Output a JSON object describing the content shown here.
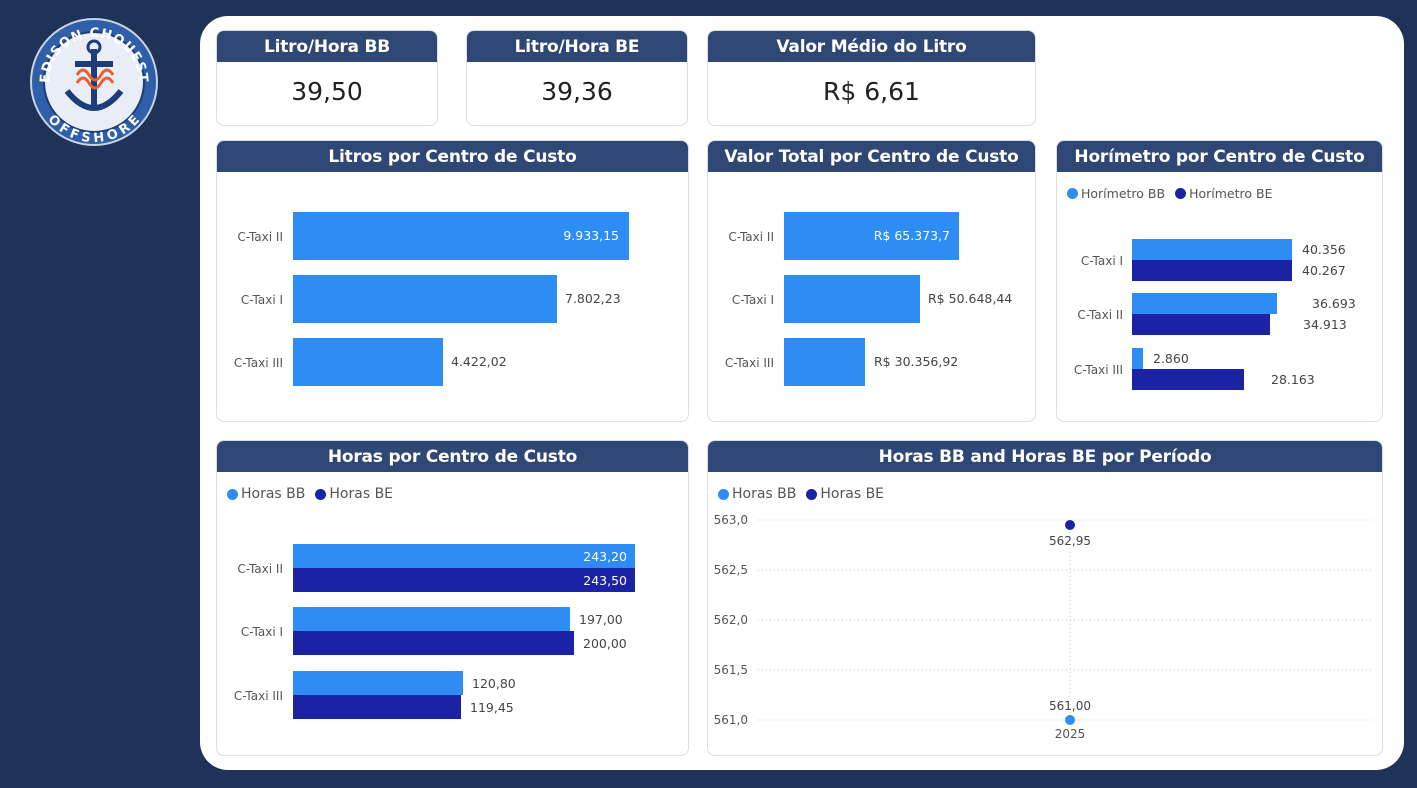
{
  "logo": {
    "top_text": "EDISON CHOUEST",
    "bottom_text": "OFFSHORE",
    "icon": "anchor-icon"
  },
  "kpis": [
    {
      "title": "Litro/Hora BB",
      "value": "39,50"
    },
    {
      "title": "Litro/Hora BE",
      "value": "39,36"
    },
    {
      "title": "Valor Médio do Litro",
      "value": "R$ 6,61"
    }
  ],
  "colors": {
    "series_bb": "#2e8df5",
    "series_be": "#1b22a3",
    "header": "#2f4775",
    "background": "#1f3358"
  },
  "chart_data": [
    {
      "type": "bar",
      "orientation": "horizontal",
      "title": "Litros por Centro de Custo",
      "categories": [
        "C-Taxi II",
        "C-Taxi I",
        "C-Taxi III"
      ],
      "values": [
        9933.15,
        7802.23,
        4422.02
      ],
      "labels": [
        "9.933,15",
        "7.802,23",
        "4.422,02"
      ]
    },
    {
      "type": "bar",
      "orientation": "horizontal",
      "title": "Valor Total por Centro de Custo",
      "categories": [
        "C-Taxi II",
        "C-Taxi I",
        "C-Taxi III"
      ],
      "values": [
        65373.7,
        50648.44,
        30356.92
      ],
      "labels": [
        "R$ 65.373,7",
        "R$ 50.648,44",
        "R$ 30.356,92"
      ]
    },
    {
      "type": "bar",
      "orientation": "horizontal",
      "title": "Horímetro por Centro de Custo",
      "categories": [
        "C-Taxi I",
        "C-Taxi II",
        "C-Taxi III"
      ],
      "legend": [
        "Horímetro BB",
        "Horímetro BE"
      ],
      "series": [
        {
          "name": "Horímetro BB",
          "values": [
            40356,
            36693,
            2860
          ],
          "labels": [
            "40.356",
            "36.693",
            "2.860"
          ]
        },
        {
          "name": "Horímetro BE",
          "values": [
            40267,
            34913,
            28163
          ],
          "labels": [
            "40.267",
            "34.913",
            "28.163"
          ]
        }
      ]
    },
    {
      "type": "bar",
      "orientation": "horizontal",
      "title": "Horas por Centro de Custo",
      "categories": [
        "C-Taxi II",
        "C-Taxi I",
        "C-Taxi III"
      ],
      "legend": [
        "Horas BB",
        "Horas BE"
      ],
      "series": [
        {
          "name": "Horas BB",
          "values": [
            243.2,
            197.0,
            120.8
          ],
          "labels": [
            "243,20",
            "197,00",
            "120,80"
          ]
        },
        {
          "name": "Horas BE",
          "values": [
            243.5,
            200.0,
            119.45
          ],
          "labels": [
            "243,50",
            "200,00",
            "119,45"
          ]
        }
      ]
    },
    {
      "type": "scatter",
      "title": "Horas BB and Horas BE por Período",
      "legend": [
        "Horas BB",
        "Horas BE"
      ],
      "x": [
        "2025"
      ],
      "ylim": [
        561.0,
        563.0
      ],
      "yticks": [
        "563,0",
        "562,5",
        "562,0",
        "561,5",
        "561,0"
      ],
      "ytick_values": [
        563.0,
        562.5,
        562.0,
        561.5,
        561.0
      ],
      "grid": true,
      "series": [
        {
          "name": "Horas BB",
          "values": [
            561.0
          ],
          "labels": [
            "561,00"
          ]
        },
        {
          "name": "Horas BE",
          "values": [
            562.95
          ],
          "labels": [
            "562,95"
          ]
        }
      ]
    }
  ]
}
